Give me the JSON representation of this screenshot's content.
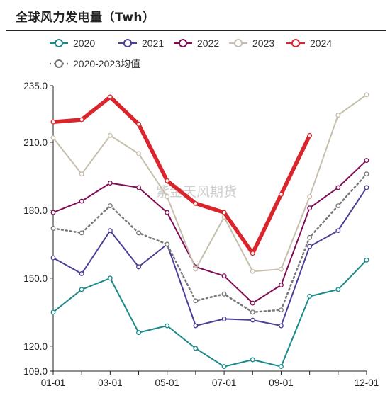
{
  "title": "全球风力发电量（Twh）",
  "watermark": "紫金天风期货",
  "chart_data": {
    "type": "line",
    "title": "全球风力发电量（Twh）",
    "xlabel": "",
    "ylabel": "",
    "ylim": [
      109,
      237
    ],
    "y_ticks": [
      109.0,
      120.0,
      150.0,
      180.0,
      210.0,
      235.0
    ],
    "y_tick_labels": [
      "109.0",
      "120.0",
      "150.0",
      "180.0",
      "210.0",
      "235.0"
    ],
    "x": [
      "01-01",
      "02-01",
      "03-01",
      "04-01",
      "05-01",
      "06-01",
      "07-01",
      "08-01",
      "09-01",
      "10-01",
      "11-01",
      "12-01"
    ],
    "x_tick_labels": [
      "01-01",
      "03-01",
      "05-01",
      "07-01",
      "09-01",
      "12-01"
    ],
    "grid": false,
    "legend_position": "top",
    "series": [
      {
        "name": "2020",
        "color": "#1b8a8a",
        "width": 2,
        "dash": "",
        "marker": true,
        "values": [
          135,
          145,
          150,
          126,
          129,
          119,
          111,
          114,
          111,
          142,
          145,
          158
        ]
      },
      {
        "name": "2021",
        "color": "#4b3f97",
        "width": 2,
        "dash": "",
        "marker": true,
        "values": [
          159,
          152,
          171,
          155,
          165,
          129,
          132,
          131.5,
          129,
          164,
          171,
          190
        ]
      },
      {
        "name": "2022",
        "color": "#800c55",
        "width": 2,
        "dash": "",
        "marker": true,
        "values": [
          179,
          184,
          192,
          190,
          179,
          155,
          151,
          139,
          147,
          181,
          190,
          202
        ]
      },
      {
        "name": "2023",
        "color": "#c7bfad",
        "width": 2,
        "dash": "",
        "marker": true,
        "values": [
          212,
          196,
          213,
          205,
          186,
          154,
          177,
          153,
          154,
          186,
          222,
          231
        ]
      },
      {
        "name": "2024",
        "color": "#d9252b",
        "width": 5.5,
        "dash": "",
        "marker": true,
        "values": [
          219,
          220,
          230,
          218,
          193,
          183,
          179,
          161,
          187,
          213,
          null,
          null
        ]
      },
      {
        "name": "2020-2023均值",
        "color": "#777777",
        "width": 2.5,
        "dash": "2,4",
        "marker": true,
        "values": [
          172,
          170,
          182,
          170,
          165,
          140,
          143,
          135,
          136,
          168,
          182,
          196
        ]
      }
    ]
  }
}
